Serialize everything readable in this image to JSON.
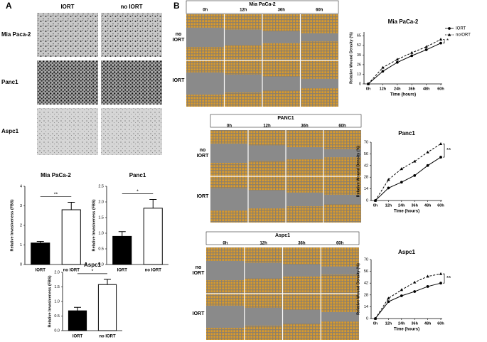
{
  "panel_labels": [
    "A",
    "B"
  ],
  "invasion_images": {
    "columns": [
      "IORT",
      "no IORT"
    ],
    "rows": [
      "Mia Paca-2",
      "Panc1",
      "Aspc1"
    ]
  },
  "wound_images": [
    {
      "title": "Mia PaCa-2",
      "columns": [
        "0h",
        "12h",
        "36h",
        "60h"
      ],
      "rows": [
        "no IORT",
        "IORT"
      ]
    },
    {
      "title": "PANC1",
      "columns": [
        "0h",
        "12h",
        "36h",
        "60h"
      ],
      "rows": [
        "no IORT",
        "IORT"
      ]
    },
    {
      "title": "Aspc1",
      "columns": [
        "0h",
        "12h",
        "36h",
        "60h"
      ],
      "rows": [
        "no IORT",
        "IORT"
      ]
    }
  ],
  "chart_data": [
    {
      "type": "bar",
      "title": "Mia PaCa-2",
      "y_label": "Relative Invasiveness (FBS)",
      "categories": [
        "IORT",
        "no IORT"
      ],
      "values": [
        1.1,
        2.8
      ],
      "errors": [
        0.08,
        0.38
      ],
      "colors": [
        "#000000",
        "#ffffff"
      ],
      "ylim": [
        0,
        4
      ],
      "yticks": [
        0,
        1,
        2,
        3,
        4
      ],
      "annotation": "**"
    },
    {
      "type": "bar",
      "title": "Panc1",
      "y_label": "Relative Invasiveness (FBS)",
      "categories": [
        "IORT",
        "no IORT"
      ],
      "values": [
        0.9,
        1.8
      ],
      "errors": [
        0.15,
        0.28
      ],
      "colors": [
        "#000000",
        "#ffffff"
      ],
      "ylim": [
        0,
        2.5
      ],
      "yticks": [
        {
          "value": 0,
          "label": "0.0"
        },
        {
          "value": 0.5,
          "label": "0.5"
        },
        {
          "value": 1,
          "label": "1.0"
        },
        {
          "value": 1.5,
          "label": "1.5"
        },
        {
          "value": 2,
          "label": "2.0"
        },
        {
          "value": 2.5,
          "label": "2.5"
        }
      ],
      "annotation": "*"
    },
    {
      "type": "bar",
      "title": "Aspc1",
      "y_label": "Relative Invasiveness (FBS)",
      "categories": [
        "IORT",
        "no IORT"
      ],
      "values": [
        0.68,
        1.58
      ],
      "errors": [
        0.12,
        0.18
      ],
      "colors": [
        "#000000",
        "#ffffff"
      ],
      "ylim": [
        0,
        2
      ],
      "yticks": [
        {
          "value": 0,
          "label": "0.0"
        },
        {
          "value": 0.5,
          "label": "0.5"
        },
        {
          "value": 1,
          "label": "1.0"
        },
        {
          "value": 1.5,
          "label": "1.5"
        },
        {
          "value": 2,
          "label": "2.0"
        }
      ],
      "annotation": "*"
    },
    {
      "type": "line",
      "title": "Mia PaCa-2",
      "x_label": "Time (hours)",
      "y_label": "Relative Wound Density (%)",
      "categories": [
        "0h",
        "12h",
        "24h",
        "36h",
        "48h",
        "60h"
      ],
      "series": [
        {
          "name": "IORT",
          "color": "#000000",
          "marker": "circle",
          "dashed": false,
          "values": [
            0,
            17,
            29,
            38,
            46,
            55
          ]
        },
        {
          "name": "noIORT",
          "color": "#000000",
          "marker": "triangle",
          "dashed": true,
          "values": [
            0,
            22,
            33,
            42,
            50,
            60
          ]
        }
      ],
      "ylim": [
        0,
        70
      ],
      "yticks": [
        0,
        13,
        26,
        39,
        52,
        65
      ],
      "annotation": "*",
      "legend": true
    },
    {
      "type": "line",
      "title": "Panc1",
      "x_label": "Time (hours)",
      "y_label": "Relative Wound Density (%)",
      "categories": [
        "0h",
        "12h",
        "24h",
        "36h",
        "48h",
        "60h"
      ],
      "series": [
        {
          "name": "IORT",
          "color": "#000000",
          "marker": "circle",
          "dashed": false,
          "values": [
            0,
            15,
            22,
            30,
            42,
            52
          ]
        },
        {
          "name": "noIORT",
          "color": "#000000",
          "marker": "triangle",
          "dashed": true,
          "values": [
            0,
            25,
            38,
            47,
            58,
            68
          ]
        }
      ],
      "ylim": [
        0,
        70
      ],
      "yticks": [
        0,
        14,
        28,
        42,
        56,
        70
      ],
      "annotation": "**",
      "legend": false
    },
    {
      "type": "line",
      "title": "Aspc1",
      "x_label": "Time (hours)",
      "y_label": "Relative Wound Density (%)",
      "categories": [
        "0h",
        "12h",
        "24h",
        "36h",
        "48h",
        "60h"
      ],
      "series": [
        {
          "name": "IORT",
          "color": "#000000",
          "marker": "circle",
          "dashed": false,
          "values": [
            0,
            20,
            27,
            32,
            38,
            42
          ]
        },
        {
          "name": "noIORT",
          "color": "#000000",
          "marker": "triangle",
          "dashed": true,
          "values": [
            0,
            24,
            34,
            43,
            50,
            53
          ]
        }
      ],
      "ylim": [
        0,
        70
      ],
      "yticks": [
        0,
        14,
        28,
        42,
        56,
        70
      ],
      "annotation": "**",
      "legend": false
    }
  ]
}
